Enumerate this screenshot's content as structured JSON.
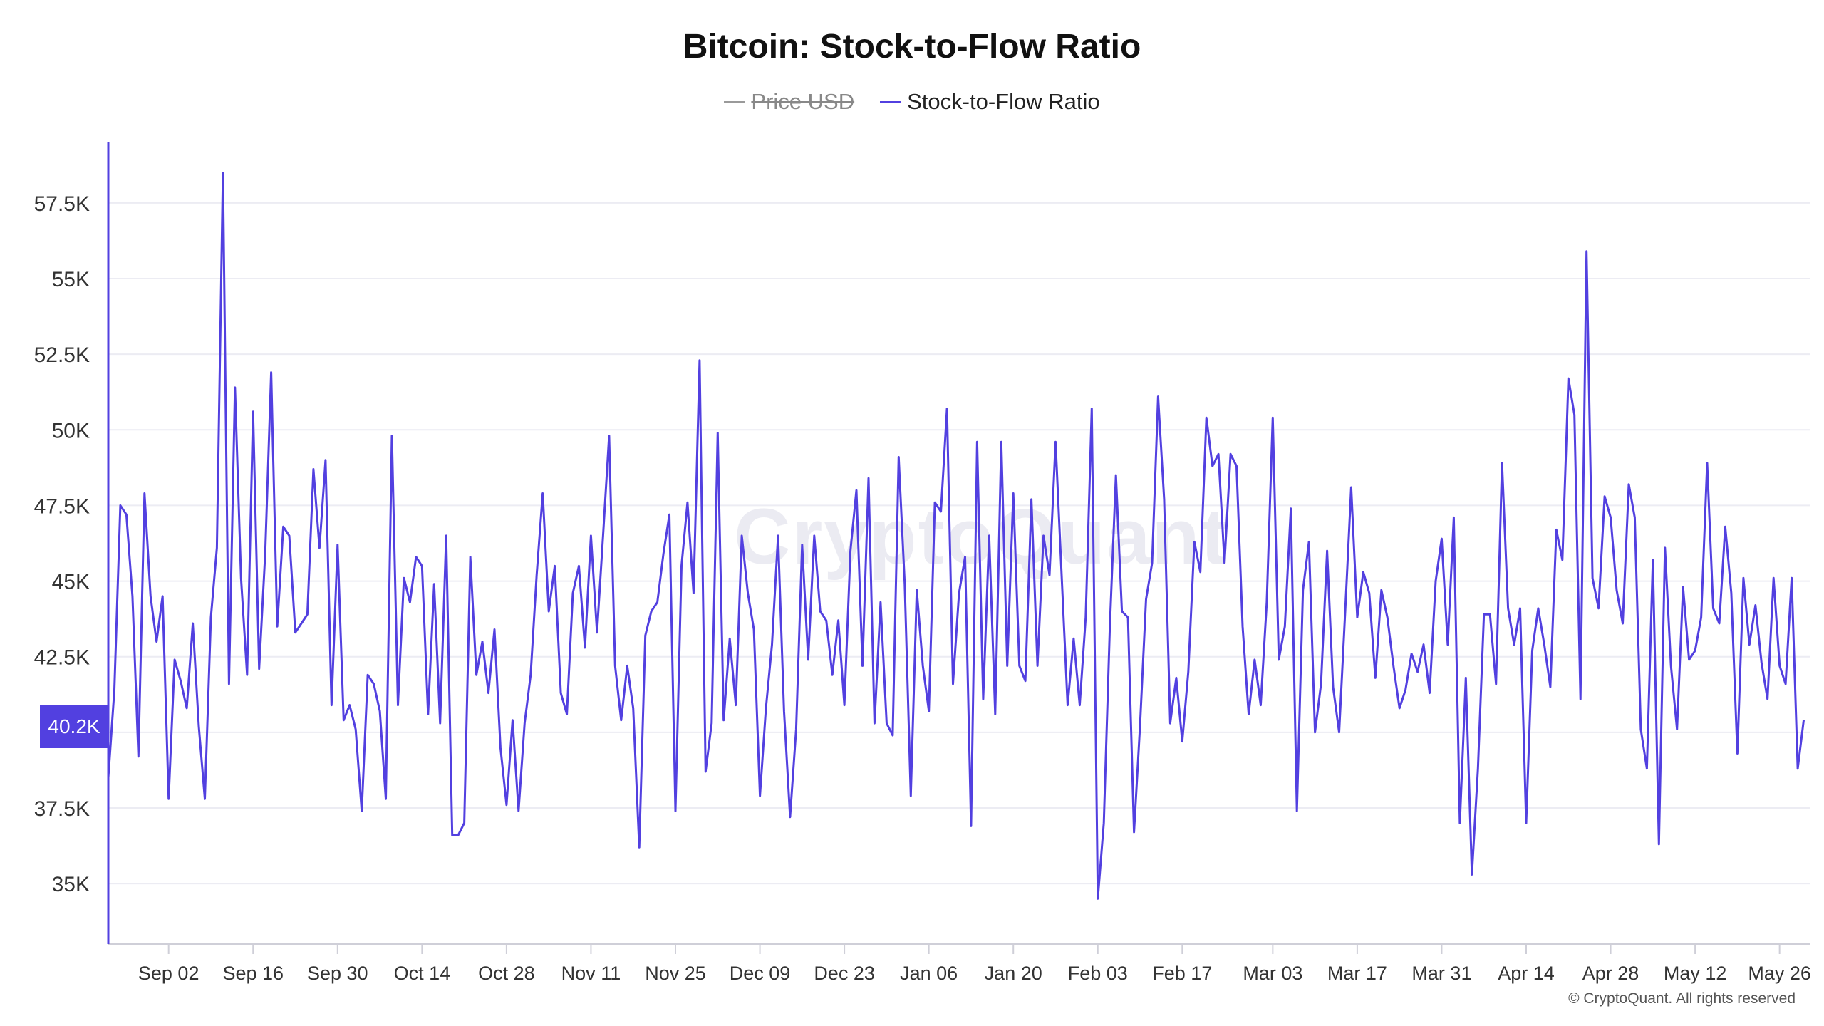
{
  "title": "Bitcoin: Stock-to-Flow Ratio",
  "legend": {
    "items": [
      {
        "label": "Price USD",
        "hidden": true,
        "color": "#9a9a9a"
      },
      {
        "label": "Stock-to-Flow Ratio",
        "hidden": false,
        "color": "#5240e0"
      }
    ]
  },
  "watermark": "CryptoQuant",
  "copyright": "© CryptoQuant. All rights reserved",
  "cursor_label": "40.2K",
  "colors": {
    "accent": "#5240e0",
    "grid": "#ececf3",
    "axis": "#cfcfd8",
    "tick_text": "#333333"
  },
  "chart_data": {
    "type": "line",
    "title": "Bitcoin: Stock-to-Flow Ratio",
    "xlabel": "",
    "ylabel": "",
    "ylim": [
      33000,
      59500
    ],
    "y_ticks": [
      {
        "value": 35000,
        "label": "35K"
      },
      {
        "value": 37500,
        "label": "37.5K"
      },
      {
        "value": 40000,
        "label": "40K"
      },
      {
        "value": 42500,
        "label": "42.5K"
      },
      {
        "value": 45000,
        "label": "45K"
      },
      {
        "value": 47500,
        "label": "47.5K"
      },
      {
        "value": 50000,
        "label": "50K"
      },
      {
        "value": 52500,
        "label": "52.5K"
      },
      {
        "value": 55000,
        "label": "55K"
      },
      {
        "value": 57500,
        "label": "57.5K"
      }
    ],
    "x_range": [
      "2023-08-23",
      "2024-05-31"
    ],
    "x_ticks": [
      {
        "date": "2023-09-02",
        "label": "Sep 02"
      },
      {
        "date": "2023-09-16",
        "label": "Sep 16"
      },
      {
        "date": "2023-09-30",
        "label": "Sep 30"
      },
      {
        "date": "2023-10-14",
        "label": "Oct 14"
      },
      {
        "date": "2023-10-28",
        "label": "Oct 28"
      },
      {
        "date": "2023-11-11",
        "label": "Nov 11"
      },
      {
        "date": "2023-11-25",
        "label": "Nov 25"
      },
      {
        "date": "2023-12-09",
        "label": "Dec 09"
      },
      {
        "date": "2023-12-23",
        "label": "Dec 23"
      },
      {
        "date": "2024-01-06",
        "label": "Jan 06"
      },
      {
        "date": "2024-01-20",
        "label": "Jan 20"
      },
      {
        "date": "2024-02-03",
        "label": "Feb 03"
      },
      {
        "date": "2024-02-17",
        "label": "Feb 17"
      },
      {
        "date": "2024-03-03",
        "label": "Mar 03"
      },
      {
        "date": "2024-03-17",
        "label": "Mar 17"
      },
      {
        "date": "2024-03-31",
        "label": "Mar 31"
      },
      {
        "date": "2024-04-14",
        "label": "Apr 14"
      },
      {
        "date": "2024-04-28",
        "label": "Apr 28"
      },
      {
        "date": "2024-05-12",
        "label": "May 12"
      },
      {
        "date": "2024-05-26",
        "label": "May 26"
      }
    ],
    "grid": true,
    "legend_position": "top-center",
    "series": [
      {
        "name": "Stock-to-Flow Ratio",
        "color": "#5240e0",
        "start_date": "2023-08-23",
        "values": [
          38500,
          41400,
          47500,
          47200,
          44500,
          39200,
          47900,
          44500,
          43000,
          44500,
          37800,
          42400,
          41700,
          40800,
          43600,
          40200,
          37800,
          43800,
          46100,
          58500,
          41600,
          51400,
          45100,
          41900,
          50600,
          42100,
          45900,
          51900,
          43500,
          46800,
          46500,
          43300,
          43600,
          43900,
          48700,
          46100,
          49000,
          40900,
          46200,
          40400,
          40900,
          40100,
          37400,
          41900,
          41600,
          40700,
          37800,
          49800,
          40900,
          45100,
          44300,
          45800,
          45500,
          40600,
          44900,
          40300,
          46500,
          36600,
          36600,
          37000,
          45800,
          41900,
          43000,
          41300,
          43400,
          39500,
          37600,
          40400,
          37400,
          40300,
          41900,
          45200,
          47900,
          44000,
          45500,
          41300,
          40600,
          44600,
          45500,
          42800,
          46500,
          43300,
          46500,
          49800,
          42200,
          40400,
          42200,
          40800,
          36200,
          43200,
          44000,
          44300,
          45900,
          47200,
          37400,
          45500,
          47600,
          44600,
          52300,
          38700,
          40300,
          49900,
          40400,
          43100,
          40900,
          46500,
          44600,
          43400,
          37900,
          40800,
          42900,
          46500,
          40700,
          37200,
          40100,
          46200,
          42400,
          46500,
          44000,
          43700,
          41900,
          43700,
          40900,
          46000,
          48000,
          42200,
          48400,
          40300,
          44300,
          40300,
          39900,
          49100,
          44900,
          37900,
          44700,
          42200,
          40700,
          47600,
          47300,
          50700,
          41600,
          44600,
          45800,
          36900,
          49600,
          41100,
          46500,
          40600,
          49600,
          42200,
          47900,
          42200,
          41700,
          47700,
          42200,
          46500,
          45200,
          49600,
          45200,
          40900,
          43100,
          40900,
          43800,
          50700,
          34500,
          37000,
          43500,
          48500,
          44000,
          43800,
          36700,
          40200,
          44400,
          45600,
          51100,
          47700,
          40300,
          41800,
          39700,
          42000,
          46300,
          45300,
          50400,
          48800,
          49200,
          45600,
          49200,
          48800,
          43500,
          40600,
          42400,
          40900,
          44300,
          50400,
          42400,
          43500,
          47400,
          37400,
          44700,
          46300,
          40000,
          41600,
          46000,
          41500,
          40000,
          44000,
          48100,
          43800,
          45300,
          44600,
          41800,
          44700,
          43800,
          42200,
          40800,
          41400,
          42600,
          42000,
          42900,
          41300,
          45000,
          46400,
          42900,
          47100,
          37000,
          41800,
          35300,
          38800,
          43900,
          43900,
          41600,
          48900,
          44100,
          42900,
          44100,
          37000,
          42700,
          44100,
          42900,
          41500,
          46700,
          45700,
          51700,
          50500,
          41100,
          55900,
          45100,
          44100,
          47800,
          47100,
          44700,
          43600,
          48200,
          47100,
          40100,
          38800,
          45700,
          36300,
          46100,
          42200,
          40100,
          44800,
          42400,
          42700,
          43800,
          48900,
          44100,
          43600,
          46800,
          44600,
          39300,
          45100,
          42900,
          44200,
          42300,
          41100,
          45100,
          42200,
          41600,
          45100,
          38800,
          40400
        ]
      }
    ]
  }
}
